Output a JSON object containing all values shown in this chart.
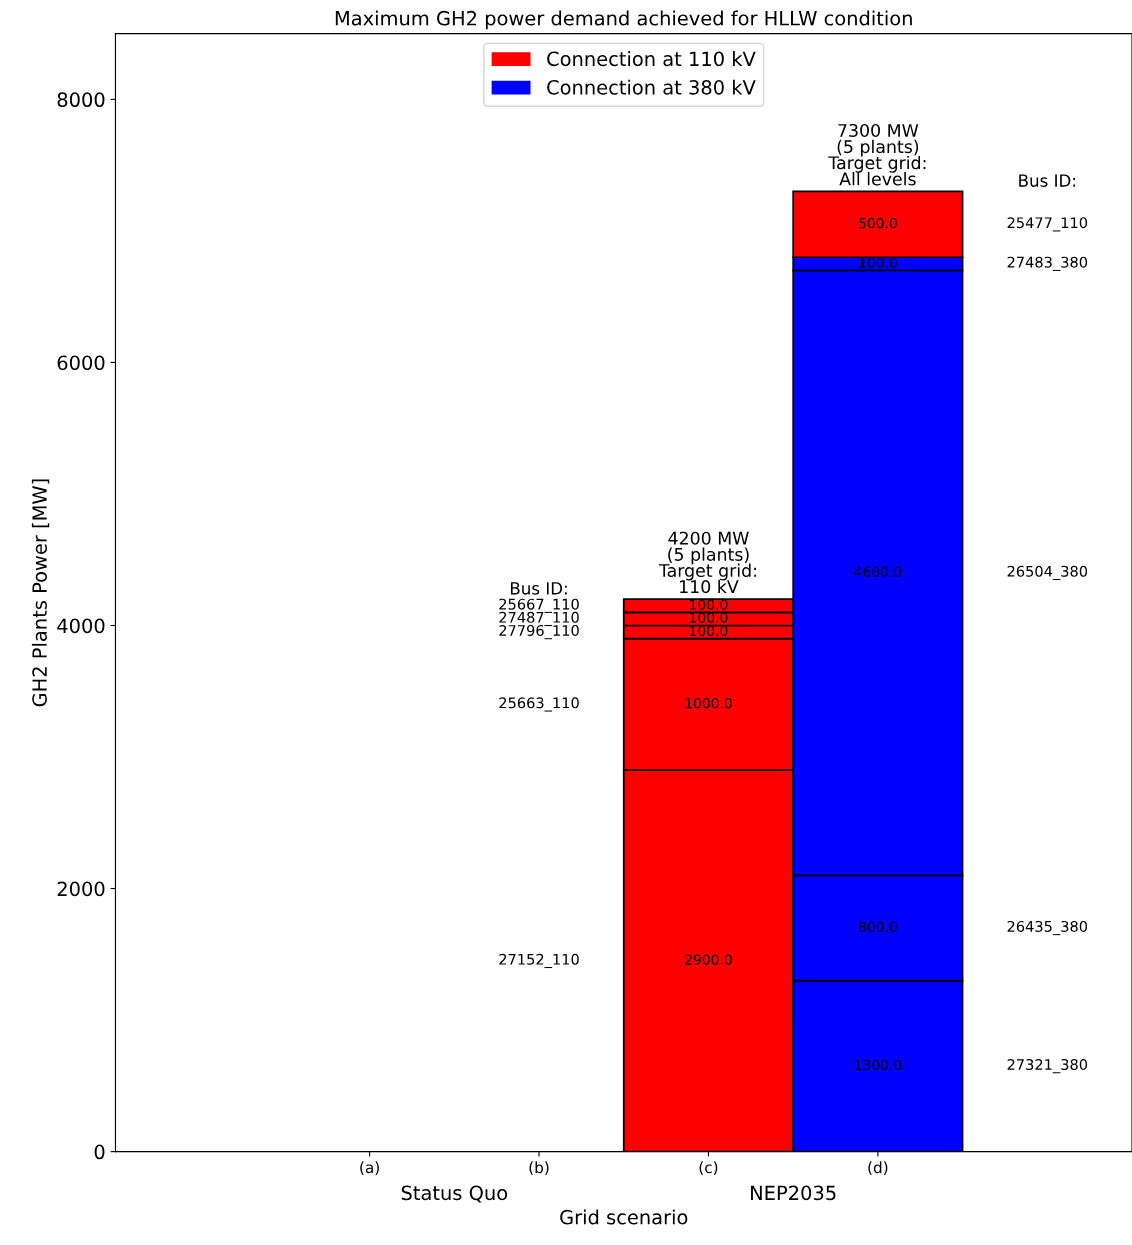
{
  "chart_data": {
    "type": "bar",
    "stacked": true,
    "title": "Maximum GH2 power demand achieved for HLLW condition",
    "xlabel": "Grid scenario",
    "ylabel": "GH2 Plants Power [MW]",
    "categories": [
      "(a)",
      "(b)",
      "(c)",
      "(d)"
    ],
    "series": [
      {
        "name": "Connection at 110 kV",
        "color": "#ff0000",
        "values": [
          null,
          null,
          2900,
          null
        ],
        "value_labels": [
          null,
          null,
          "2900.0",
          null
        ]
      },
      {
        "color": "#ff0000",
        "values": [
          null,
          null,
          1000,
          null
        ],
        "value_labels": [
          null,
          null,
          "1000.0",
          null
        ]
      },
      {
        "color": "#ff0000",
        "values": [
          null,
          null,
          100,
          null
        ],
        "value_labels": [
          null,
          null,
          "100.0",
          null
        ]
      },
      {
        "color": "#ff0000",
        "values": [
          null,
          null,
          100,
          null
        ],
        "value_labels": [
          null,
          null,
          "100.0",
          null
        ]
      },
      {
        "color": "#ff0000",
        "values": [
          null,
          null,
          100,
          null
        ],
        "value_labels": [
          null,
          null,
          "100.0",
          null
        ]
      },
      {
        "name": "Connection at 380 kV",
        "color": "#0000ff",
        "values": [
          null,
          null,
          null,
          1300
        ],
        "value_labels": [
          null,
          null,
          null,
          "1300.0"
        ]
      },
      {
        "color": "#0000ff",
        "values": [
          null,
          null,
          null,
          800
        ],
        "value_labels": [
          null,
          null,
          null,
          "800.0"
        ]
      },
      {
        "color": "#0000ff",
        "values": [
          null,
          null,
          null,
          4600
        ],
        "value_labels": [
          null,
          null,
          null,
          "4600.0"
        ]
      },
      {
        "color": "#0000ff",
        "values": [
          null,
          null,
          null,
          100
        ],
        "value_labels": [
          null,
          null,
          null,
          "100.0"
        ]
      },
      {
        "color": "#ff0000",
        "values": [
          null,
          null,
          null,
          500
        ],
        "value_labels": [
          null,
          null,
          null,
          "500.0"
        ]
      }
    ],
    "totals": [
      null,
      null,
      "4200 MW\n(5 plants)\nTarget grid:\n110 kV",
      "7300 MW\n(5 plants)\nTarget grid:\nAll levels"
    ],
    "annotations": [
      "Status Quo",
      "NEP2035",
      "Bus ID:",
      "27152_110",
      "25663_110",
      "27796_110",
      "27487_110",
      "25667_110",
      "Bus ID:",
      "27321_380",
      "26435_380",
      "26504_380",
      "27483_380",
      "25477_110"
    ],
    "ylim": [
      0,
      8500
    ],
    "yticks": [
      0,
      2000,
      4000,
      6000,
      8000
    ],
    "grid": false,
    "legend": "top"
  }
}
